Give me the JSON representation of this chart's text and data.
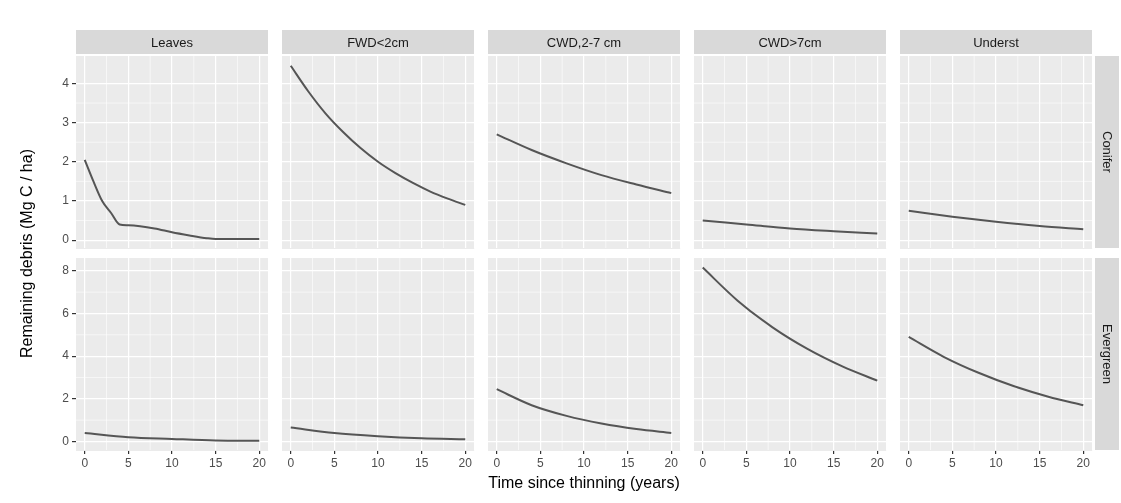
{
  "chart_data": [
    {
      "type": "line",
      "title": "Leaves",
      "ylabel": "Remaining debris (Mg C / ha)",
      "x": [
        0,
        1,
        2,
        3,
        4,
        5,
        8,
        10,
        12,
        14,
        15,
        20
      ],
      "values": [
        2.05,
        1.5,
        1.0,
        0.7,
        0.4,
        0.38,
        0.3,
        0.2,
        0.12,
        0.05,
        0.03,
        0.03
      ],
      "color": "#555555",
      "xlim": [
        -1,
        21
      ],
      "xticks": [
        0,
        5,
        10,
        15,
        20
      ],
      "ylim": [
        -0.2,
        4.7
      ],
      "yticks": [
        0,
        1,
        2,
        3,
        4
      ],
      "grid": true,
      "tick_labels": "y"
    },
    {
      "type": "line",
      "title": "FWD<2cm",
      "x": [
        0,
        2,
        4,
        6,
        8,
        10,
        12,
        14,
        16,
        18,
        20
      ],
      "values": [
        4.45,
        3.8,
        3.23,
        2.76,
        2.35,
        2.0,
        1.71,
        1.46,
        1.24,
        1.06,
        0.9
      ],
      "color": "#555555",
      "xlim": [
        -1,
        21
      ],
      "xticks": [
        0,
        5,
        10,
        15,
        20
      ],
      "ylim": [
        -0.2,
        4.7
      ],
      "yticks": [
        0,
        1,
        2,
        3,
        4
      ],
      "grid": true,
      "tick_labels": false
    },
    {
      "type": "line",
      "title": "CWD,2-7 cm",
      "x": [
        0,
        4,
        8,
        12,
        16,
        20
      ],
      "values": [
        2.7,
        2.3,
        1.96,
        1.66,
        1.42,
        1.2
      ],
      "color": "#555555",
      "xlim": [
        -1,
        21
      ],
      "xticks": [
        0,
        5,
        10,
        15,
        20
      ],
      "ylim": [
        -0.2,
        4.7
      ],
      "yticks": [
        0,
        1,
        2,
        3,
        4
      ],
      "grid": true,
      "tick_labels": false
    },
    {
      "type": "line",
      "title": "CWD>7cm",
      "x": [
        0,
        5,
        10,
        15,
        20
      ],
      "values": [
        0.5,
        0.4,
        0.3,
        0.23,
        0.17
      ],
      "color": "#555555",
      "xlim": [
        -1,
        21
      ],
      "xticks": [
        0,
        5,
        10,
        15,
        20
      ],
      "ylim": [
        -0.2,
        4.7
      ],
      "yticks": [
        0,
        1,
        2,
        3,
        4
      ],
      "grid": true,
      "tick_labels": false
    },
    {
      "type": "line",
      "title": "Underst",
      "annotations": [
        "Conifer"
      ],
      "x": [
        0,
        5,
        10,
        15,
        20
      ],
      "values": [
        0.75,
        0.6,
        0.47,
        0.36,
        0.28
      ],
      "color": "#555555",
      "xlim": [
        -1,
        21
      ],
      "xticks": [
        0,
        5,
        10,
        15,
        20
      ],
      "ylim": [
        -0.2,
        4.7
      ],
      "yticks": [
        0,
        1,
        2,
        3,
        4
      ],
      "grid": true,
      "tick_labels": false
    },
    {
      "type": "line",
      "x": [
        0,
        5,
        10,
        15,
        20
      ],
      "values": [
        0.4,
        0.2,
        0.12,
        0.05,
        0.03
      ],
      "color": "#555555",
      "xlim": [
        -1,
        21
      ],
      "xticks": [
        0,
        5,
        10,
        15,
        20
      ],
      "ylim": [
        -0.4,
        8.6
      ],
      "yticks": [
        0,
        2,
        4,
        6,
        8
      ],
      "grid": true
    },
    {
      "type": "line",
      "x": [
        0,
        5,
        10,
        15,
        20
      ],
      "values": [
        0.65,
        0.4,
        0.25,
        0.15,
        0.1
      ],
      "color": "#555555",
      "xlim": [
        -1,
        21
      ],
      "xticks": [
        0,
        5,
        10,
        15,
        20
      ],
      "ylim": [
        -0.4,
        8.6
      ],
      "yticks": [
        0,
        2,
        4,
        6,
        8
      ],
      "grid": true,
      "tick_labels": "x"
    },
    {
      "type": "line",
      "xlabel": "Time since thinning (years)",
      "x": [
        0,
        4,
        8,
        12,
        16,
        20
      ],
      "values": [
        2.45,
        1.7,
        1.2,
        0.84,
        0.58,
        0.4
      ],
      "color": "#555555",
      "xlim": [
        -1,
        21
      ],
      "xticks": [
        0,
        5,
        10,
        15,
        20
      ],
      "ylim": [
        -0.4,
        8.6
      ],
      "yticks": [
        0,
        2,
        4,
        6,
        8
      ],
      "grid": true,
      "tick_labels": "x"
    },
    {
      "type": "line",
      "x": [
        0,
        4,
        8,
        12,
        16,
        20
      ],
      "values": [
        8.15,
        6.6,
        5.35,
        4.34,
        3.52,
        2.85
      ],
      "color": "#555555",
      "xlim": [
        -1,
        21
      ],
      "xticks": [
        0,
        5,
        10,
        15,
        20
      ],
      "ylim": [
        -0.4,
        8.6
      ],
      "yticks": [
        0,
        2,
        4,
        6,
        8
      ],
      "grid": true,
      "tick_labels": "x"
    },
    {
      "type": "line",
      "annotations": [
        "Evergreen"
      ],
      "x": [
        0,
        4,
        8,
        12,
        16,
        20
      ],
      "values": [
        4.9,
        3.97,
        3.22,
        2.6,
        2.1,
        1.7
      ],
      "color": "#555555",
      "xlim": [
        -1,
        21
      ],
      "xticks": [
        0,
        5,
        10,
        15,
        20
      ],
      "ylim": [
        -0.4,
        8.6
      ],
      "yticks": [
        0,
        2,
        4,
        6,
        8
      ],
      "grid": true,
      "tick_labels": "x"
    }
  ]
}
